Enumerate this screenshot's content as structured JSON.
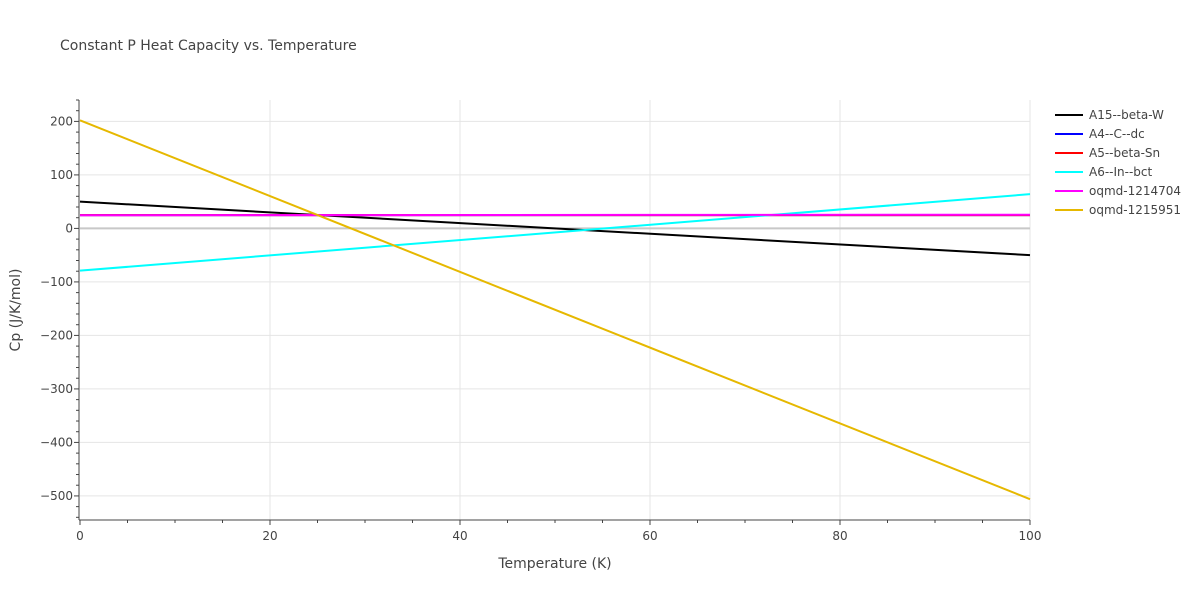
{
  "chart_data": {
    "type": "line",
    "title": "Constant P Heat Capacity vs. Temperature",
    "xlabel": "Temperature (K)",
    "ylabel": "Cp (J/K/mol)",
    "xlim": [
      0,
      100
    ],
    "ylim": [
      -545,
      240
    ],
    "x_ticks": [
      0,
      20,
      40,
      60,
      80,
      100
    ],
    "x_tick_labels": [
      "0",
      "20",
      "40",
      "60",
      "80",
      "100"
    ],
    "y_ticks": [
      200,
      100,
      0,
      -100,
      -200,
      -300,
      -400,
      -500
    ],
    "y_tick_labels": [
      "200",
      "100",
      "0",
      "−100",
      "−200",
      "−300",
      "−400",
      "−500"
    ],
    "grid": true,
    "legend_position": "right",
    "series": [
      {
        "name": "A15--beta-W",
        "color": "#000000",
        "x": [
          0,
          100
        ],
        "y": [
          50,
          -50
        ]
      },
      {
        "name": "A4--C--dc",
        "color": "#0000ff",
        "x": [
          0,
          100
        ],
        "y": [
          24.9,
          24.9
        ]
      },
      {
        "name": "A5--beta-Sn",
        "color": "#ff0000",
        "x": [
          0,
          100
        ],
        "y": [
          24.9,
          24.9
        ]
      },
      {
        "name": "A6--In--bct",
        "color": "#00ffff",
        "x": [
          0,
          100
        ],
        "y": [
          -79,
          64
        ]
      },
      {
        "name": "oqmd-1214704",
        "color": "#ff00ff",
        "x": [
          0,
          100
        ],
        "y": [
          24.6,
          25.6
        ]
      },
      {
        "name": "oqmd-1215951",
        "color": "#e6b800",
        "x": [
          0,
          100
        ],
        "y": [
          202,
          -506
        ]
      }
    ]
  }
}
